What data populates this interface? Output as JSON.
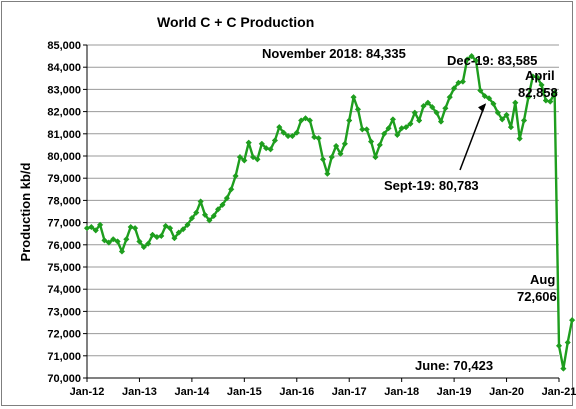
{
  "chart_data": {
    "type": "line",
    "title": "World C + C Production",
    "ylabel": "Production kb/d",
    "xlabel": "",
    "ylim": [
      70000,
      85000
    ],
    "y_ticks": [
      70000,
      71000,
      72000,
      73000,
      74000,
      75000,
      76000,
      77000,
      78000,
      79000,
      80000,
      81000,
      82000,
      83000,
      84000,
      85000
    ],
    "y_tick_labels": [
      "70,000",
      "71,000",
      "72,000",
      "73,000",
      "74,000",
      "75,000",
      "76,000",
      "77,000",
      "78,000",
      "79,000",
      "80,000",
      "81,000",
      "82,000",
      "83,000",
      "84,000",
      "85,000"
    ],
    "x_tick_labels": [
      "Jan-12",
      "Jan-13",
      "Jan-14",
      "Jan-15",
      "Jan-16",
      "Jan-17",
      "Jan-18",
      "Jan-19",
      "Jan-20",
      "Jan-21"
    ],
    "x_start": "2012-01",
    "x_end": "2021-01",
    "grid": "horizontal",
    "line_color": "#1e9e1e",
    "series": [
      {
        "values": [
          76750,
          76800,
          76650,
          76900,
          76200,
          76100,
          76250,
          76150,
          75700,
          76250,
          76800,
          76750,
          76150,
          75900,
          76050,
          76450,
          76350,
          76400,
          76850,
          76750,
          76300,
          76550,
          76700,
          76900,
          77200,
          77450,
          77950,
          77350,
          77100,
          77300,
          77600,
          77800,
          78100,
          78500,
          79100,
          79950,
          79800,
          80600,
          79950,
          79850,
          80550,
          80350,
          80300,
          80700,
          81300,
          81050,
          80900,
          80900,
          81050,
          81600,
          81700,
          81600,
          80850,
          80800,
          79850,
          79200,
          79950,
          80450,
          80100,
          80550,
          81600,
          82650,
          82100,
          81200,
          81200,
          80650,
          79950,
          80500,
          81000,
          81250,
          81650,
          80950,
          81250,
          81300,
          81450,
          81950,
          81600,
          82250,
          82400,
          82200,
          81950,
          81550,
          82150,
          82650,
          83050,
          83300,
          83350,
          84350,
          84500,
          84300,
          82950,
          82700,
          82600,
          82350,
          81950,
          81650,
          81850,
          81300,
          82400,
          80783,
          81600,
          82650,
          83585,
          83550,
          83200,
          82500,
          82450,
          82858,
          71450,
          70423,
          71600,
          72606
        ]
      }
    ],
    "annotations": [
      {
        "id": "nov18",
        "text": "November 2018: 84,335"
      },
      {
        "id": "dec19",
        "text": "Dec-19: 83,585"
      },
      {
        "id": "april1",
        "text": "April"
      },
      {
        "id": "april2",
        "text": "82,858"
      },
      {
        "id": "sept19",
        "text": "Sept-19: 80,783"
      },
      {
        "id": "aug1",
        "text": "Aug"
      },
      {
        "id": "aug2",
        "text": "72,606"
      },
      {
        "id": "june",
        "text": "June: 70,423"
      }
    ]
  }
}
